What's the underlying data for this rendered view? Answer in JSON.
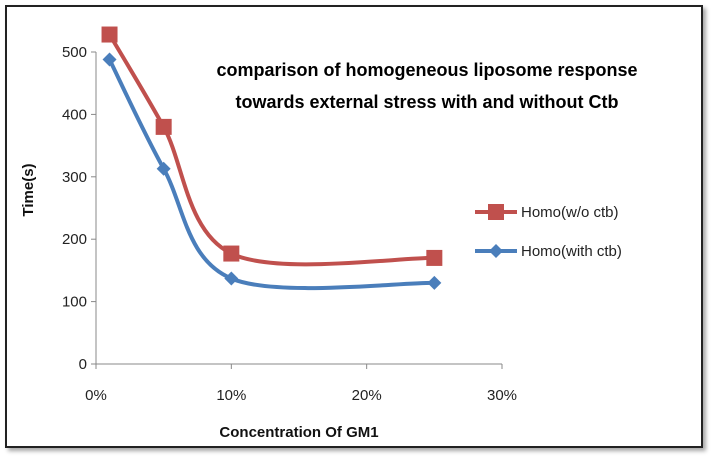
{
  "chart_data": {
    "type": "line",
    "title_lines": [
      "comparison of homogeneous  liposome response",
      "towards external stress with and without Ctb"
    ],
    "xlabel": "Concentration Of GM1",
    "ylabel": "Time(s)",
    "x": [
      0.01,
      0.05,
      0.1,
      0.25
    ],
    "xlim": [
      0,
      0.3
    ],
    "ylim": [
      0,
      500
    ],
    "xticks": [
      "0%",
      "10%",
      "20%",
      "30%"
    ],
    "yticks": [
      "0",
      "100",
      "200",
      "300",
      "400",
      "500"
    ],
    "smooth": true,
    "grid": false,
    "legend_position": "right",
    "series": [
      {
        "name": "Homo(w/o ctb)",
        "values": [
          528,
          380,
          177,
          170
        ],
        "color": "#c0504d",
        "marker": "square"
      },
      {
        "name": "Homo(with ctb)",
        "values": [
          488,
          313,
          137,
          130
        ],
        "color": "#4a7ebb",
        "marker": "diamond"
      }
    ]
  }
}
